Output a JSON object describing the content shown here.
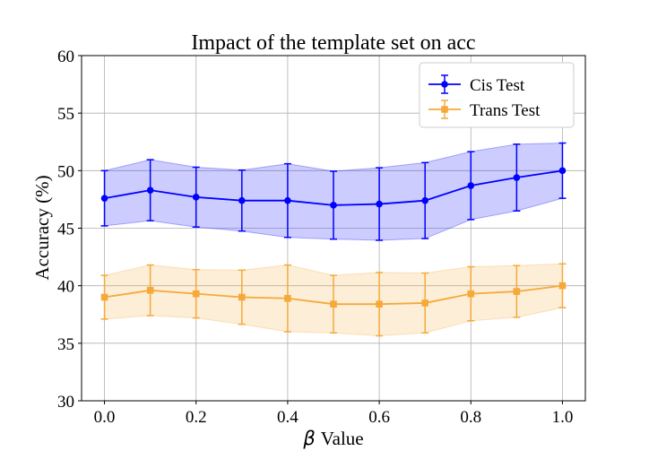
{
  "chart_data": {
    "type": "line",
    "title": "Impact of the template set on acc",
    "xlabel_symbol": "β",
    "xlabel": "Value",
    "ylabel": "Accuracy (%)",
    "xlim": [
      -0.05,
      1.05
    ],
    "ylim": [
      30,
      60
    ],
    "xticks": [
      "0.0",
      "0.2",
      "0.4",
      "0.6",
      "0.8",
      "1.0"
    ],
    "yticks": [
      "30",
      "35",
      "40",
      "45",
      "50",
      "55",
      "60"
    ],
    "grid": true,
    "legend_position": "top-right",
    "x": [
      0.0,
      0.1,
      0.2,
      0.3,
      0.4,
      0.5,
      0.6,
      0.7,
      0.8,
      0.9,
      1.0
    ],
    "series": [
      {
        "name": "Cis Test",
        "color": "#0000ff",
        "marker": "circle",
        "values": [
          47.6,
          48.3,
          47.7,
          47.4,
          47.4,
          47.0,
          47.1,
          47.4,
          48.7,
          49.4,
          50.0
        ],
        "errors": [
          2.4,
          2.65,
          2.6,
          2.65,
          3.2,
          2.95,
          3.15,
          3.3,
          2.95,
          2.9,
          2.4
        ]
      },
      {
        "name": "Trans Test",
        "color": "#f5a93a",
        "marker": "square",
        "values": [
          39.0,
          39.6,
          39.3,
          39.0,
          38.9,
          38.4,
          38.4,
          38.5,
          39.3,
          39.5,
          40.0
        ],
        "errors": [
          1.9,
          2.2,
          2.1,
          2.35,
          2.9,
          2.5,
          2.75,
          2.6,
          2.35,
          2.25,
          1.9
        ]
      }
    ]
  }
}
